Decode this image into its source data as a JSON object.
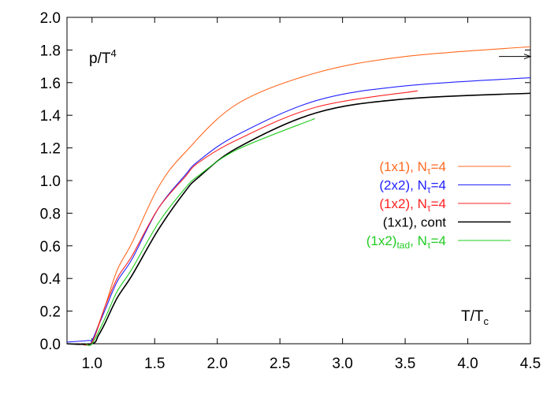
{
  "chart_data": {
    "type": "line",
    "title": "",
    "ylabel": "p/T",
    "ylabel_sup": "4",
    "xlabel": "T/T",
    "xlabel_sub": "c",
    "xlim": [
      0.8,
      4.5
    ],
    "ylim": [
      0.0,
      2.0
    ],
    "xticks": [
      "1.0",
      "1.5",
      "2.0",
      "2.5",
      "3.0",
      "3.5",
      "4.0",
      "4.5"
    ],
    "xtick_values": [
      1.0,
      1.5,
      2.0,
      2.5,
      3.0,
      3.5,
      4.0,
      4.5
    ],
    "yticks": [
      "0.0",
      "0.2",
      "0.4",
      "0.6",
      "0.8",
      "1.0",
      "1.2",
      "1.4",
      "1.6",
      "1.8",
      "2.0"
    ],
    "ytick_values": [
      0,
      0.2,
      0.4,
      0.6,
      0.8,
      1.0,
      1.2,
      1.4,
      1.6,
      1.8,
      2.0
    ],
    "grid": false,
    "legend_placement": "center-right",
    "arrow": {
      "y": 1.76,
      "x_from": 4.4,
      "x_to": 4.5,
      "direction": "right"
    },
    "series": [
      {
        "name": "(1x1), N",
        "sub": "τ",
        "suffix": "=4",
        "color": "#ff6a20",
        "x": [
          1.0,
          1.1,
          1.2,
          1.32,
          1.53,
          1.74,
          2.16,
          2.79,
          3.5,
          4.5
        ],
        "y": [
          0.01,
          0.22,
          0.45,
          0.62,
          0.96,
          1.17,
          1.47,
          1.66,
          1.76,
          1.82
        ]
      },
      {
        "name": "(2x2), N",
        "sub": "τ",
        "suffix": "=4",
        "color": "#2222ff",
        "x": [
          0.8,
          0.98,
          1.0,
          1.1,
          1.2,
          1.32,
          1.53,
          1.74,
          1.85,
          2.16,
          2.79,
          3.5,
          4.5
        ],
        "y": [
          0.01,
          0.02,
          0.02,
          0.2,
          0.38,
          0.52,
          0.83,
          1.03,
          1.12,
          1.28,
          1.49,
          1.58,
          1.63
        ]
      },
      {
        "name": "(1x2), N",
        "sub": "τ",
        "suffix": "=4",
        "color": "#ff2020",
        "x": [
          0.9,
          1.0,
          1.1,
          1.2,
          1.32,
          1.53,
          1.74,
          1.85,
          2.16,
          2.79,
          3.6
        ],
        "y": [
          0.0,
          0.01,
          0.22,
          0.4,
          0.54,
          0.83,
          1.02,
          1.11,
          1.25,
          1.45,
          1.55
        ]
      },
      {
        "name": "(1x1), cont",
        "sub": "",
        "suffix": "",
        "color": "#000000",
        "x": [
          0.8,
          1.0,
          1.05,
          1.1,
          1.2,
          1.32,
          1.53,
          1.74,
          1.85,
          2.16,
          2.79,
          3.5,
          4.5
        ],
        "y": [
          0.0,
          0.0,
          0.05,
          0.12,
          0.28,
          0.42,
          0.7,
          0.93,
          1.02,
          1.2,
          1.415,
          1.5,
          1.535
        ]
      },
      {
        "name": "(1x2)",
        "sub": "tad",
        "suffix": ", N",
        "sub2": "τ",
        "suffix2": "=4",
        "color": "#22cc22",
        "x": [
          0.95,
          1.0,
          1.1,
          1.2,
          1.32,
          1.53,
          1.74,
          1.85,
          2.16,
          2.78
        ],
        "y": [
          0.0,
          0.0,
          0.15,
          0.32,
          0.46,
          0.74,
          0.95,
          1.03,
          1.19,
          1.38
        ]
      }
    ]
  }
}
